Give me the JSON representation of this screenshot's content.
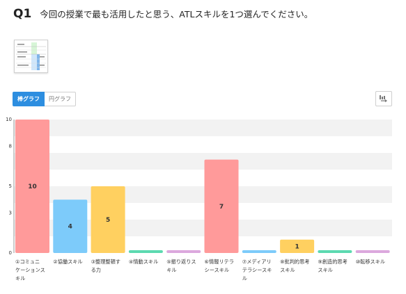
{
  "question": {
    "number": "Q1",
    "text": "今回の授業で最も活用したと思う、ATLスキルを1つ選んでください。"
  },
  "toggle": {
    "bar_label": "棒グラフ",
    "pie_label": "円グラフ"
  },
  "icons": {
    "download": "download-icon",
    "thumbnail": "table-thumbnail-icon"
  },
  "colors": {
    "accent": "#2d8ee0",
    "grid_band": "#f2f2f2"
  },
  "chart_data": {
    "type": "bar",
    "categories": [
      [
        "①コミュニ",
        "ケーションス",
        "キル"
      ],
      [
        "②協働スキル"
      ],
      [
        "③整理整頓す",
        "る力"
      ],
      [
        "④情動スキル"
      ],
      [
        "⑤振り返りス",
        "キル"
      ],
      [
        "⑥情報リテラ",
        "シースキル"
      ],
      [
        "⑦メディアリ",
        "テラシースキ",
        "ル"
      ],
      [
        "⑧批判的思考",
        "スキル"
      ],
      [
        "⑨創造的思考",
        "スキル"
      ],
      [
        "⑩転移スキル"
      ]
    ],
    "values": [
      10,
      4,
      5,
      0,
      0,
      7,
      0,
      1,
      0,
      0
    ],
    "bar_colors": [
      "#ff9a9a",
      "#7dcbfa",
      "#ffd060",
      "#5cd9b0",
      "#dba8dd",
      "#ff9a9a",
      "#7dcbfa",
      "#ffd060",
      "#5cd9b0",
      "#dba8dd"
    ],
    "value_labels_visible": [
      true,
      true,
      true,
      false,
      false,
      true,
      false,
      true,
      false,
      false
    ],
    "y_ticks": [
      0,
      3,
      5,
      8,
      10
    ],
    "ylim": [
      0,
      10
    ],
    "grid": true
  }
}
